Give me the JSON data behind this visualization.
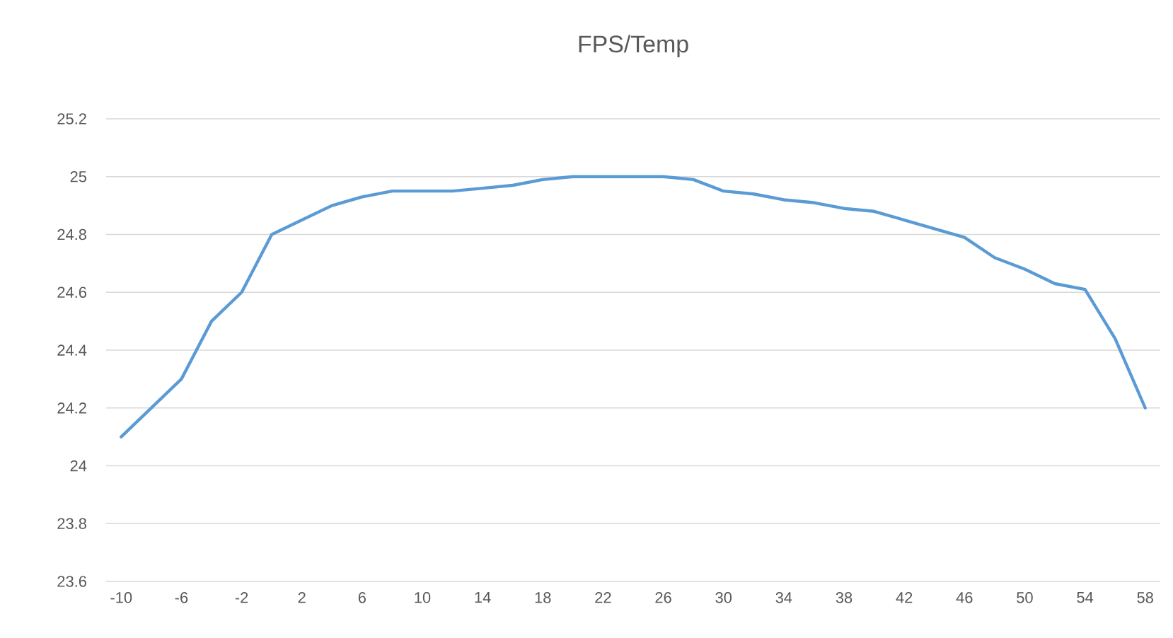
{
  "chart_data": {
    "type": "line",
    "title": "FPS/Temp",
    "x": [
      -10,
      -8,
      -6,
      -4,
      -2,
      0,
      2,
      4,
      6,
      8,
      10,
      12,
      14,
      16,
      18,
      20,
      22,
      24,
      26,
      28,
      30,
      32,
      34,
      36,
      38,
      40,
      42,
      44,
      46,
      48,
      50,
      52,
      54,
      56,
      58
    ],
    "series": [
      {
        "color": "#5b9bd5",
        "values": [
          24.1,
          24.2,
          24.3,
          24.5,
          24.6,
          24.8,
          24.85,
          24.9,
          24.93,
          24.95,
          24.95,
          24.95,
          24.96,
          24.97,
          24.99,
          25.0,
          25.0,
          25.0,
          25.0,
          24.99,
          24.95,
          24.94,
          24.92,
          24.91,
          24.89,
          24.88,
          24.85,
          24.82,
          24.79,
          24.72,
          24.68,
          24.63,
          24.61,
          24.44,
          24.2
        ]
      }
    ],
    "xlim": [
      -11,
      59
    ],
    "xticks": [
      -10,
      -6,
      -2,
      2,
      6,
      10,
      14,
      18,
      22,
      26,
      30,
      34,
      38,
      42,
      46,
      50,
      54,
      58
    ],
    "ylim": [
      23.6,
      25.2
    ],
    "yticks": [
      23.6,
      23.8,
      24,
      24.2,
      24.4,
      24.6,
      24.8,
      25,
      25.2
    ],
    "grid": "y",
    "marker": "none",
    "line_style": "solid"
  }
}
